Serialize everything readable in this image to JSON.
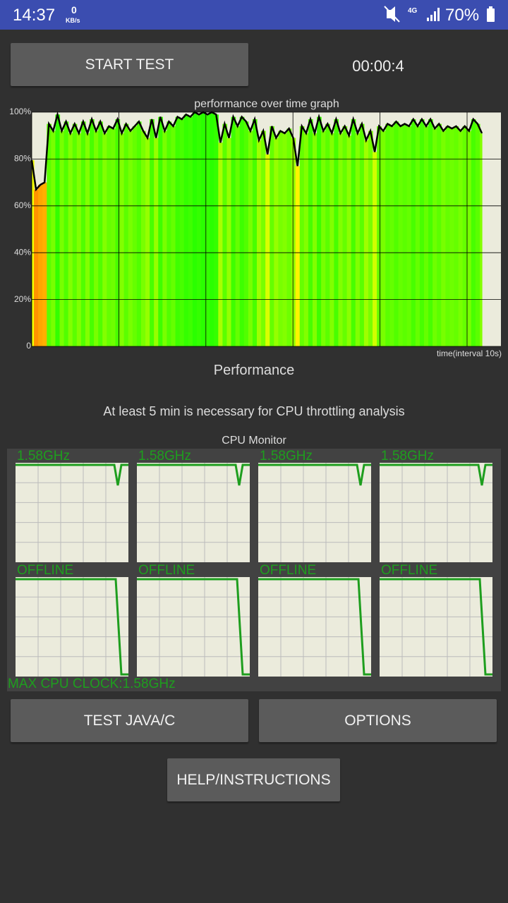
{
  "status_bar": {
    "time": "14:37",
    "net_speed": "0",
    "net_unit": "KB/s",
    "network": "4G",
    "battery": "70%"
  },
  "buttons": {
    "start": "START TEST",
    "test": "TEST JAVA/C",
    "options": "OPTIONS",
    "help": "HELP/INSTRUCTIONS"
  },
  "timer": "00:00:4",
  "chart_data": {
    "type": "line",
    "title": "performance over time graph",
    "x_label": "time(interval 10s)",
    "ylim": [
      0,
      100
    ],
    "yticks": [
      0,
      {
        "value": 20,
        "label": "20%"
      },
      {
        "value": 40,
        "label": "40%"
      },
      {
        "value": 60,
        "label": "60%"
      },
      {
        "value": 80,
        "label": "80%"
      },
      {
        "value": 100,
        "label": "100%"
      }
    ],
    "grid": true,
    "color": "#000000",
    "values": [
      79.5,
      67,
      69,
      70,
      95,
      92,
      99,
      92,
      96,
      91,
      95,
      91,
      96,
      91,
      97,
      92,
      96,
      91,
      94,
      93,
      97,
      91,
      95,
      92,
      94,
      96,
      92,
      89,
      97,
      89,
      98,
      92,
      96,
      94,
      98,
      97,
      99,
      98,
      100,
      99,
      100,
      99,
      100,
      99,
      87,
      95,
      89,
      98,
      94,
      98,
      96,
      92,
      97,
      88,
      92,
      82,
      94,
      89,
      92,
      91,
      93,
      89,
      77,
      94,
      91,
      97,
      91,
      98,
      92,
      95,
      91,
      97,
      91,
      94,
      90,
      97,
      91,
      95,
      88,
      92,
      83,
      94,
      92,
      95,
      94,
      96,
      94,
      95,
      94,
      97,
      94,
      97,
      94,
      97,
      93,
      95,
      92,
      94,
      93,
      94,
      92,
      94,
      92,
      97,
      95,
      91
    ]
  },
  "performance_label": "Performance",
  "note": "At least 5 min is necessary for CPU throttling analysis",
  "cpu_monitor": {
    "title": "CPU Monitor",
    "cores": [
      "1.58GHz",
      "1.58GHz",
      "1.58GHz",
      "1.58GHz",
      "OFFLINE",
      "OFFLINE",
      "OFFLINE",
      "OFFLINE"
    ],
    "max_clock": "MAX CPU CLOCK:1.58GHz"
  }
}
